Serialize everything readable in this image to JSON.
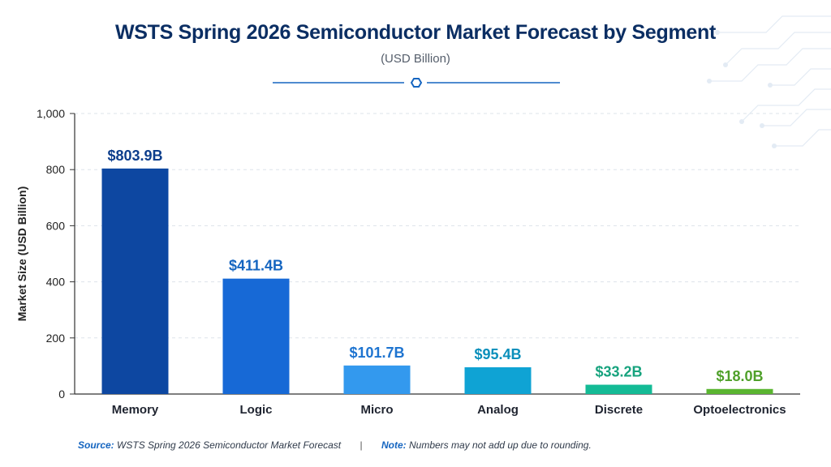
{
  "header": {
    "title": "WSTS Spring 2026 Semiconductor Market Forecast by Segment",
    "subtitle": "(USD Billion)"
  },
  "footer": {
    "source_label": "Source:",
    "source_text": "WSTS Spring 2026 Semiconductor Market Forecast",
    "separator": "|",
    "note_label": "Note:",
    "note_text": "Numbers may not add up due to rounding."
  },
  "colors": {
    "title": "#0b2e63",
    "bars": [
      "#0d47a1",
      "#1769d6",
      "#3399ee",
      "#0fa3d4",
      "#14bb96",
      "#5ab530"
    ],
    "labels": [
      "#0d3e8c",
      "#1565c0",
      "#1e74d0",
      "#0a8fbb",
      "#17a37e",
      "#4fa02a"
    ]
  },
  "chart_data": {
    "type": "bar",
    "title": "WSTS Spring 2026 Semiconductor Market Forecast by Segment",
    "subtitle": "(USD Billion)",
    "xlabel": "",
    "ylabel": "Market Size (USD Billion)",
    "categories": [
      "Memory",
      "Logic",
      "Micro",
      "Analog",
      "Discrete",
      "Optoelectronics"
    ],
    "values": [
      803.9,
      411.4,
      101.7,
      95.4,
      33.2,
      18.0
    ],
    "data_labels": [
      "$803.9B",
      "$411.4B",
      "$101.7B",
      "$95.4B",
      "$33.2B",
      "$18.0B"
    ],
    "ylim": [
      0,
      1000
    ],
    "yticks": [
      0,
      200,
      400,
      600,
      800,
      1000
    ],
    "ytick_labels": [
      "0",
      "200",
      "400",
      "600",
      "800",
      "1,000"
    ],
    "grid": true,
    "legend": "none"
  }
}
